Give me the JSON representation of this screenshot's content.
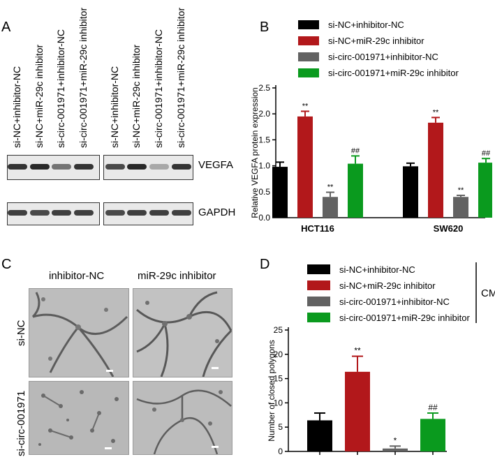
{
  "panels": {
    "a": "A",
    "b": "B",
    "c": "C",
    "d": "D"
  },
  "blot": {
    "lanes": [
      "si-NC+inhibitor-NC",
      "si-NC+miR-29c inhibitor",
      "si-circ-001971+inhibitor-NC",
      "si-circ-001971+miR-29c inhibitor",
      "si-NC+inhibitor-NC",
      "si-NC+miR-29c inhibitor",
      "si-circ-001971+inhibitor-NC",
      "si-circ-001971+miR-29c inhibitor"
    ],
    "rows": [
      "VEGFA",
      "GAPDH"
    ]
  },
  "micrographs": {
    "columns": [
      "inhibitor-NC",
      "miR-29c inhibitor"
    ],
    "rows": [
      "si-NC",
      "si-circ-001971"
    ]
  },
  "chart_data": [
    {
      "id": "B",
      "type": "bar",
      "ylabel": "Relative  VEGFA protein expression",
      "ylim": [
        0,
        2.5
      ],
      "yticks": [
        "0.0",
        "0.5",
        "1.0",
        "1.5",
        "2.0",
        "2.5"
      ],
      "categories": [
        "HCT116",
        "SW620"
      ],
      "series": [
        {
          "name": "si-NC+inhibitor-NC",
          "color": "#000000",
          "values": [
            0.98,
            0.99
          ],
          "errors": [
            0.09,
            0.06
          ],
          "marks": [
            "",
            ""
          ]
        },
        {
          "name": "si-NC+miR-29c inhibitor",
          "color": "#b2181b",
          "values": [
            1.95,
            1.83
          ],
          "errors": [
            0.1,
            0.1
          ],
          "marks": [
            "**",
            "**"
          ]
        },
        {
          "name": "si-circ-001971+inhibitor-NC",
          "color": "#626262",
          "values": [
            0.4,
            0.4
          ],
          "errors": [
            0.09,
            0.03
          ],
          "marks": [
            "**",
            "**"
          ]
        },
        {
          "name": "si-circ-001971+miR-29c inhibitor",
          "color": "#0a9a1e",
          "values": [
            1.04,
            1.06
          ],
          "errors": [
            0.15,
            0.08
          ],
          "marks": [
            "##",
            "##"
          ]
        }
      ],
      "legend": "top"
    },
    {
      "id": "D",
      "type": "bar",
      "ylabel": "Number of closed polygons",
      "ylim": [
        0,
        25
      ],
      "yticks": [
        "0",
        "5",
        "10",
        "15",
        "20",
        "25"
      ],
      "categories": [
        "",
        "",
        "",
        ""
      ],
      "series_label": "CM",
      "series": [
        {
          "name": "si-NC+inhibitor-NC",
          "color": "#000000",
          "value": 6.4,
          "error": 1.5,
          "mark": ""
        },
        {
          "name": "si-NC+miR-29c inhibitor",
          "color": "#b2181b",
          "value": 16.4,
          "error": 3.2,
          "mark": "**"
        },
        {
          "name": "si-circ-001971+inhibitor-NC",
          "color": "#626262",
          "value": 0.6,
          "error": 0.5,
          "mark": "*"
        },
        {
          "name": "si-circ-001971+miR-29c inhibitor",
          "color": "#0a9a1e",
          "value": 6.7,
          "error": 1.2,
          "mark": "##"
        }
      ],
      "legend": "top"
    }
  ]
}
